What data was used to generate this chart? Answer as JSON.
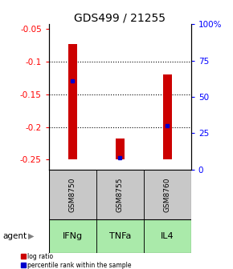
{
  "title": "GDS499 / 21255",
  "categories": [
    "GSM8750",
    "GSM8755",
    "GSM8760"
  ],
  "agents": [
    "IFNg",
    "TNFa",
    "IL4"
  ],
  "bar_tops": [
    -0.073,
    -0.218,
    -0.12
  ],
  "bar_bottom": -0.25,
  "percentile_values": [
    -0.13,
    -0.247,
    -0.198
  ],
  "ylim_left": [
    -0.265,
    -0.043
  ],
  "yticks_left": [
    -0.05,
    -0.1,
    -0.15,
    -0.2,
    -0.25
  ],
  "ytick_labels_left": [
    "-0.05",
    "-0.1",
    "-0.15",
    "-0.2",
    "-0.25"
  ],
  "yticks_right_pct": [
    100,
    75,
    50,
    25,
    0
  ],
  "ytick_labels_right": [
    "100%",
    "75",
    "50",
    "25",
    "0"
  ],
  "bar_color": "#cc0000",
  "blue_color": "#0000cc",
  "gray_bg": "#c8c8c8",
  "green_bg": "#aaeaaa",
  "legend_red_label": "log ratio",
  "legend_blue_label": "percentile rank within the sample",
  "agent_label": "agent",
  "title_fontsize": 10,
  "tick_fontsize": 7.5,
  "bar_width": 0.18
}
